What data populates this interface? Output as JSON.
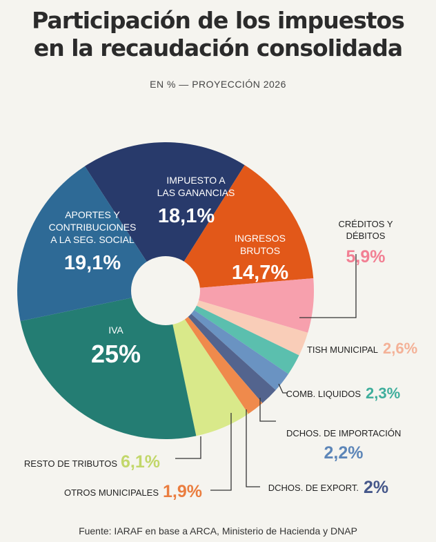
{
  "header": {
    "title_line1": "Participación de los impuestos",
    "title_line2": "en la recaudación consolidada",
    "subtitle": "EN % — PROYECCIÓN 2026"
  },
  "source": "Fuente: IARAF en base a ARCA, Ministerio de Hacienda y DNAP",
  "chart_data": {
    "type": "pie",
    "title": "Participación de los impuestos en la recaudación consolidada",
    "subtitle": "EN % — PROYECCIÓN 2026",
    "unit": "%",
    "slices": [
      {
        "label": "IMPUESTO A LAS GANANCIAS",
        "value": 18.1,
        "display": "18,1%",
        "color": "#283a6b"
      },
      {
        "label": "INGRESOS BRUTOS",
        "value": 14.7,
        "display": "14,7%",
        "color": "#e25819"
      },
      {
        "label": "CRÉDITOS Y DÉBITOS",
        "value": 5.9,
        "display": "5,9%",
        "color": "#f7a0ad"
      },
      {
        "label": "TISH MUNICIPAL",
        "value": 2.6,
        "display": "2,6%",
        "color": "#f9cdb8"
      },
      {
        "label": "COMB. LIQUIDOS",
        "value": 2.3,
        "display": "2,3%",
        "color": "#5bbfae"
      },
      {
        "label": "DCHOS. DE IMPORTACIÓN",
        "value": 2.2,
        "display": "2,2%",
        "color": "#6a93c2"
      },
      {
        "label": "DCHOS. DE EXPORT.",
        "value": 2.0,
        "display": "2%",
        "color": "#53648e"
      },
      {
        "label": "OTROS MUNICIPALES",
        "value": 1.9,
        "display": "1,9%",
        "color": "#ef8a4c"
      },
      {
        "label": "RESTO DE TRIBUTOS",
        "value": 6.1,
        "display": "6,1%",
        "color": "#d9e98a"
      },
      {
        "label": "IVA",
        "value": 25,
        "display": "25%",
        "color": "#247d73"
      },
      {
        "label": "APORTES Y CONTRIBUCIONES A LA SEG. SOCIAL",
        "value": 19.1,
        "display": "19,1%",
        "color": "#2e6a96"
      }
    ]
  },
  "colors": {
    "label_creditos": "#f27f93",
    "label_tish": "#f4b197",
    "label_comb": "#3fae9c",
    "label_import": "#5d86b8",
    "label_export": "#45578a",
    "label_otros": "#ea7d3f",
    "label_resto": "#c2d76a"
  }
}
